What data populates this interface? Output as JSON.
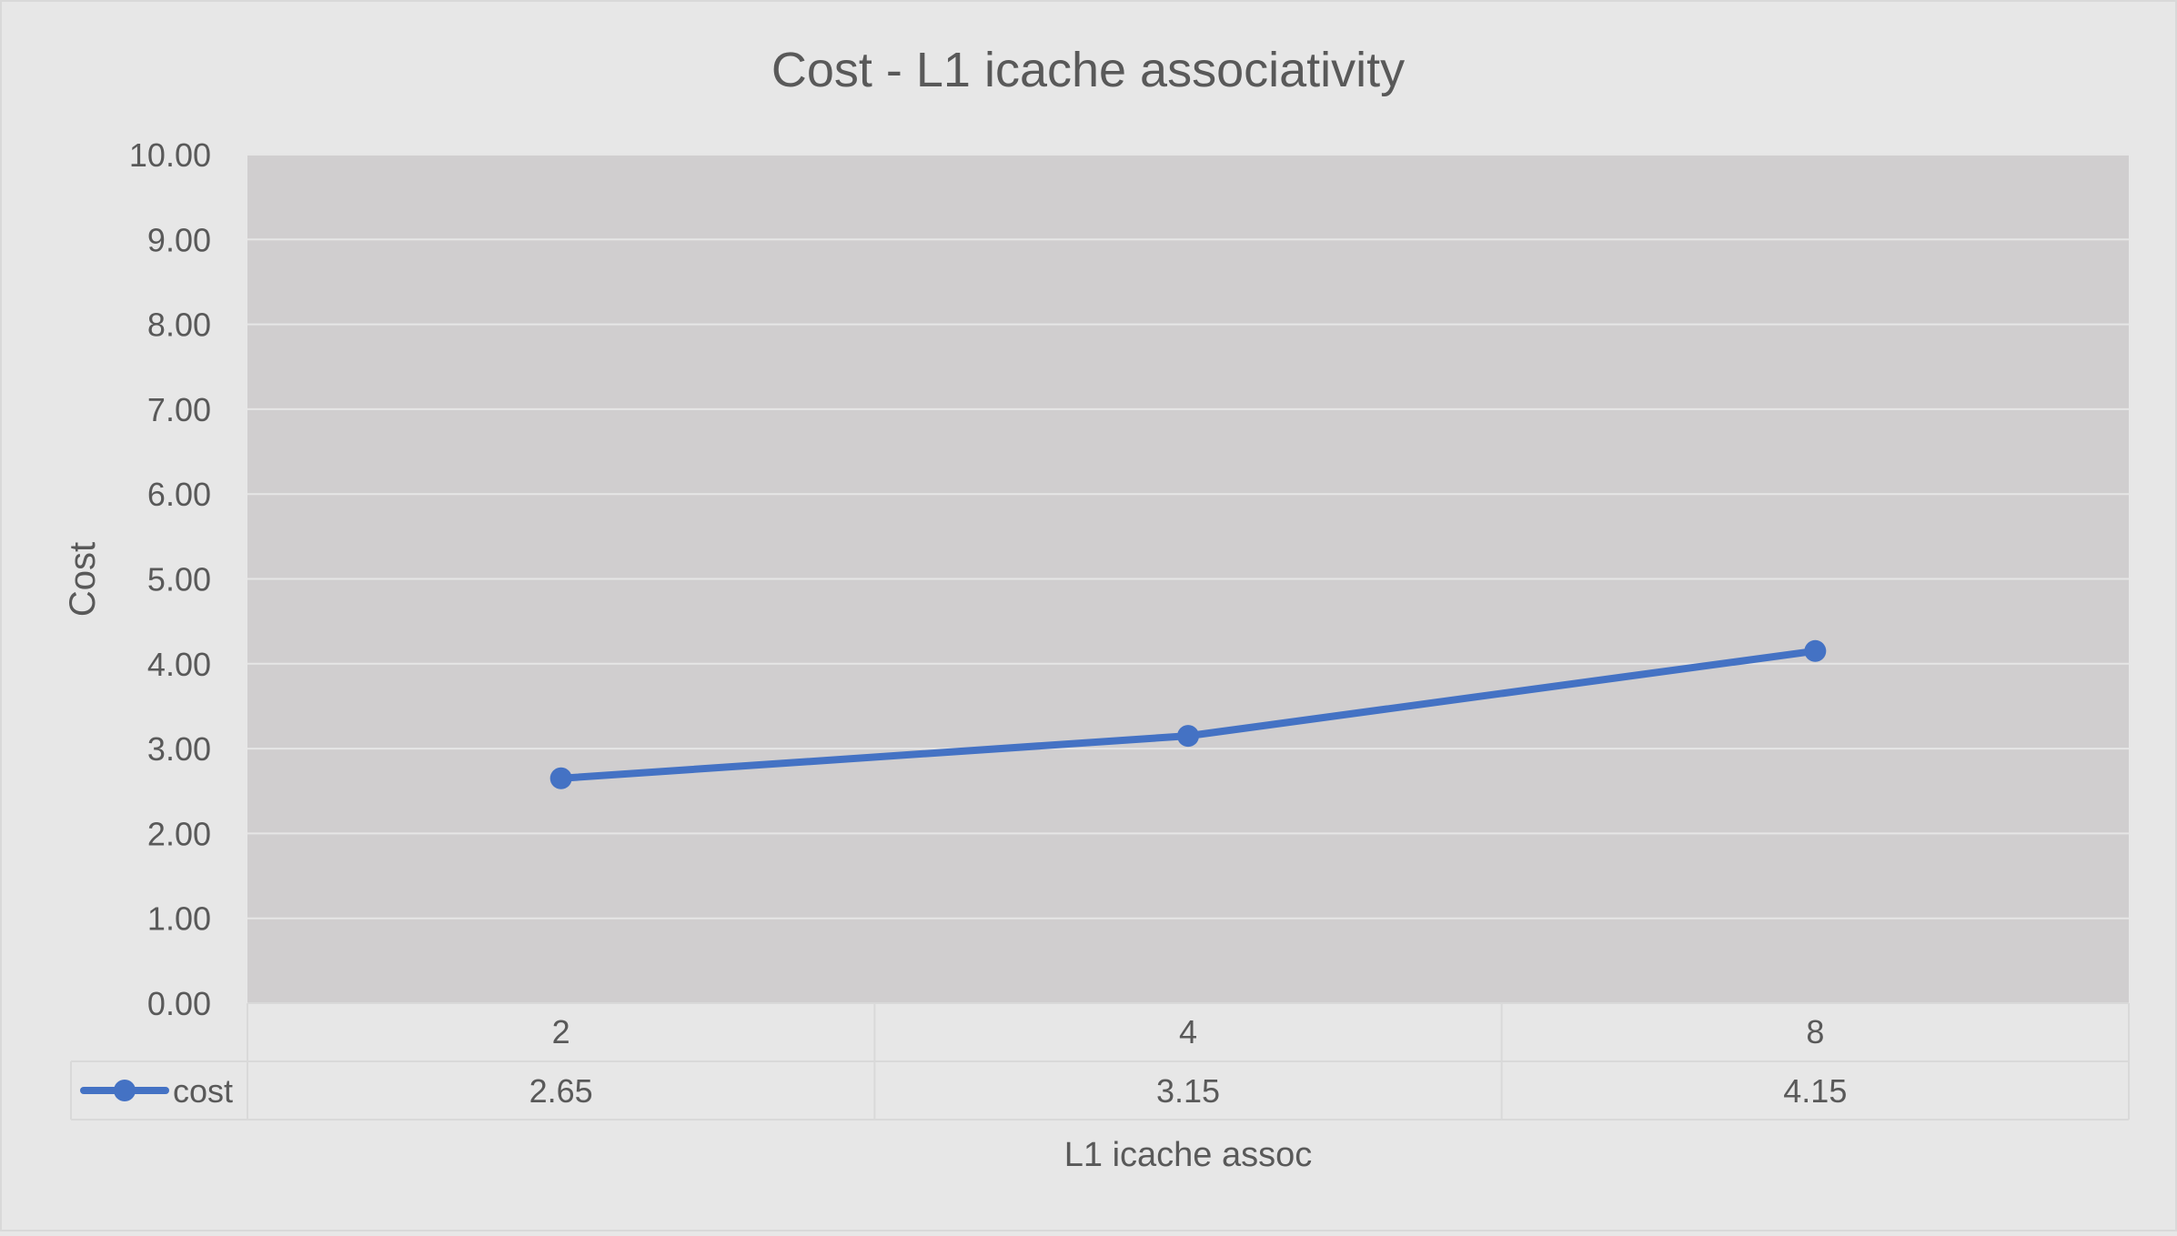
{
  "chart_data": {
    "type": "line",
    "title": "Cost - L1 icache associativity",
    "xlabel": "L1 icache assoc",
    "ylabel": "Cost",
    "categories": [
      "2",
      "4",
      "8"
    ],
    "series": [
      {
        "name": "cost",
        "values": [
          2.65,
          3.15,
          4.15
        ],
        "value_labels": [
          "2.65",
          "3.15",
          "4.15"
        ]
      }
    ],
    "ylim": [
      0,
      10
    ],
    "yticks": [
      "0.00",
      "1.00",
      "2.00",
      "3.00",
      "4.00",
      "5.00",
      "6.00",
      "7.00",
      "8.00",
      "9.00",
      "10.00"
    ],
    "grid": true,
    "legend": "data-table",
    "colors": {
      "series": "#4472c4",
      "plot_bg": "#d0cecf",
      "chart_bg": "#e7e7e7",
      "grid": "#e6e6e6",
      "text": "#595959",
      "table_border": "#d9d9d9"
    }
  }
}
